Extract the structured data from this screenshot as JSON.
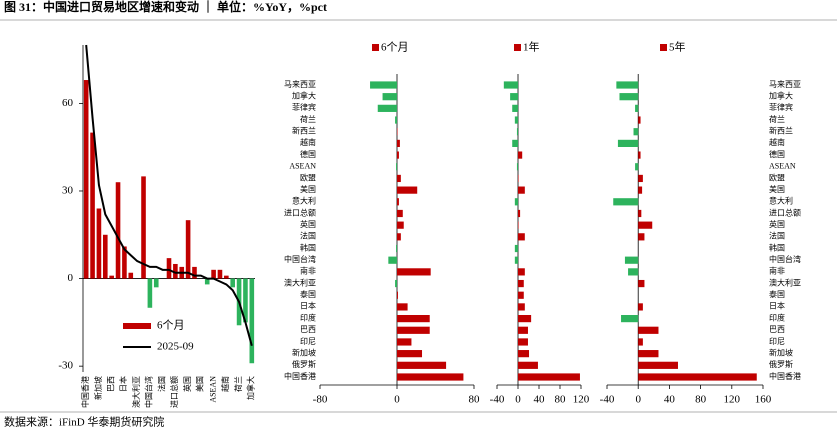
{
  "title": "图 31：中国进口贸易地区增速和变动 ｜ 单位：%YoY，%pct",
  "source": "数据来源：iFinD   华泰期货研究院",
  "chart_data": [
    {
      "type": "bar_line",
      "categories": [
        "中国香港",
        null,
        "新加坡",
        null,
        "巴西",
        null,
        "日本",
        null,
        "澳大利亚",
        null,
        "中国台湾",
        null,
        "法国",
        null,
        "进口总额",
        null,
        "英国",
        null,
        "美国",
        null,
        "ASEAN",
        null,
        "越南",
        null,
        "荷兰",
        null,
        "加拿大"
      ],
      "series": [
        {
          "name": "6个月",
          "kind": "bar",
          "color": "#c00000",
          "negative_color": "#2db35d",
          "values": [
            68,
            50,
            24,
            15,
            1,
            33,
            11,
            2,
            0,
            35,
            -10,
            -3,
            0,
            7,
            5,
            4,
            20,
            4,
            0,
            -2,
            3,
            3,
            1,
            -3,
            -16,
            -15,
            -29
          ]
        },
        {
          "name": "2025-09",
          "kind": "line",
          "color": "#000000",
          "values": [
            80,
            55,
            32,
            22,
            18,
            14,
            10,
            8,
            6,
            5,
            4,
            4,
            3,
            3,
            2,
            2,
            2,
            1,
            1,
            0,
            0,
            -1,
            -2,
            -4,
            -8,
            -15,
            -23
          ]
        }
      ],
      "ylim": [
        -32,
        80
      ],
      "yticks": [
        -30,
        0,
        30,
        60
      ],
      "legend": "lower left"
    },
    {
      "type": "barh_panels",
      "categories": [
        "马来西亚",
        "加拿大",
        "菲律宾",
        "荷兰",
        "新西兰",
        "越南",
        "德国",
        "ASEAN",
        "欧盟",
        "美国",
        "意大利",
        "进口总额",
        "英国",
        "法国",
        "韩国",
        "中国台湾",
        "南非",
        "澳大利亚",
        "泰国",
        "日本",
        "印度",
        "巴西",
        "印尼",
        "新加坡",
        "俄罗斯",
        "中国香港"
      ],
      "series": [
        {
          "name": "6个月",
          "color": "#c00000",
          "negative_color": "#2db35d",
          "values": [
            -28,
            -15,
            -20,
            -2,
            0.5,
            3,
            2,
            -1,
            4,
            21,
            2,
            6,
            7,
            4,
            -1,
            -9,
            35,
            -2,
            1,
            11,
            34,
            34,
            15,
            26,
            51,
            69
          ],
          "xlim": [
            -80,
            80
          ],
          "xticks": [
            -80,
            0,
            80
          ]
        },
        {
          "name": "1年",
          "color": "#c00000",
          "negative_color": "#2db35d",
          "values": [
            -27,
            -15,
            -11,
            -6,
            -2,
            -11,
            8,
            -2,
            1,
            13,
            -6,
            4,
            1,
            13,
            -6,
            -6,
            13,
            11,
            11,
            13,
            25,
            19,
            19,
            21,
            38,
            118
          ],
          "xlim": [
            -40,
            120
          ],
          "xticks": [
            -40,
            0,
            40,
            80,
            120
          ]
        },
        {
          "name": "5年",
          "color": "#c00000",
          "negative_color": "#2db35d",
          "values": [
            -28,
            -24,
            -4,
            3,
            -6,
            -26,
            3,
            -4,
            6,
            5,
            -32,
            4,
            18,
            8,
            0,
            -17,
            -13,
            8,
            0,
            6,
            -22,
            26,
            6,
            26,
            51,
            152
          ],
          "xlim": [
            -40,
            160
          ],
          "xticks": [
            -40,
            0,
            40,
            80,
            120,
            160
          ]
        }
      ]
    }
  ]
}
